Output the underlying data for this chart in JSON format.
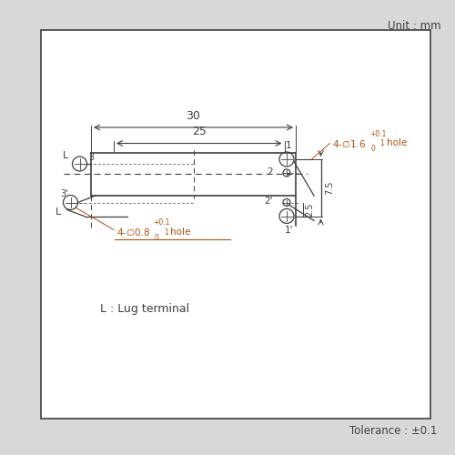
{
  "bg_color": "#d8d8d8",
  "box_color": "#ffffff",
  "line_color": "#404040",
  "dim_color": "#b05010",
  "unit_text": "Unit : mm",
  "tolerance_text": "Tolerance : ±0.1",
  "lug_text": "L : Lug terminal",
  "dim_30": "30",
  "dim_25": "25",
  "dim_7_5": "7.5",
  "dim_2_5": "2.5",
  "label_1": "1",
  "label_2": "2",
  "label_2p": "2'",
  "label_1p": "1'",
  "label_3": "3",
  "label_3p": "3'",
  "label_L1": "L",
  "label_L2": "L"
}
